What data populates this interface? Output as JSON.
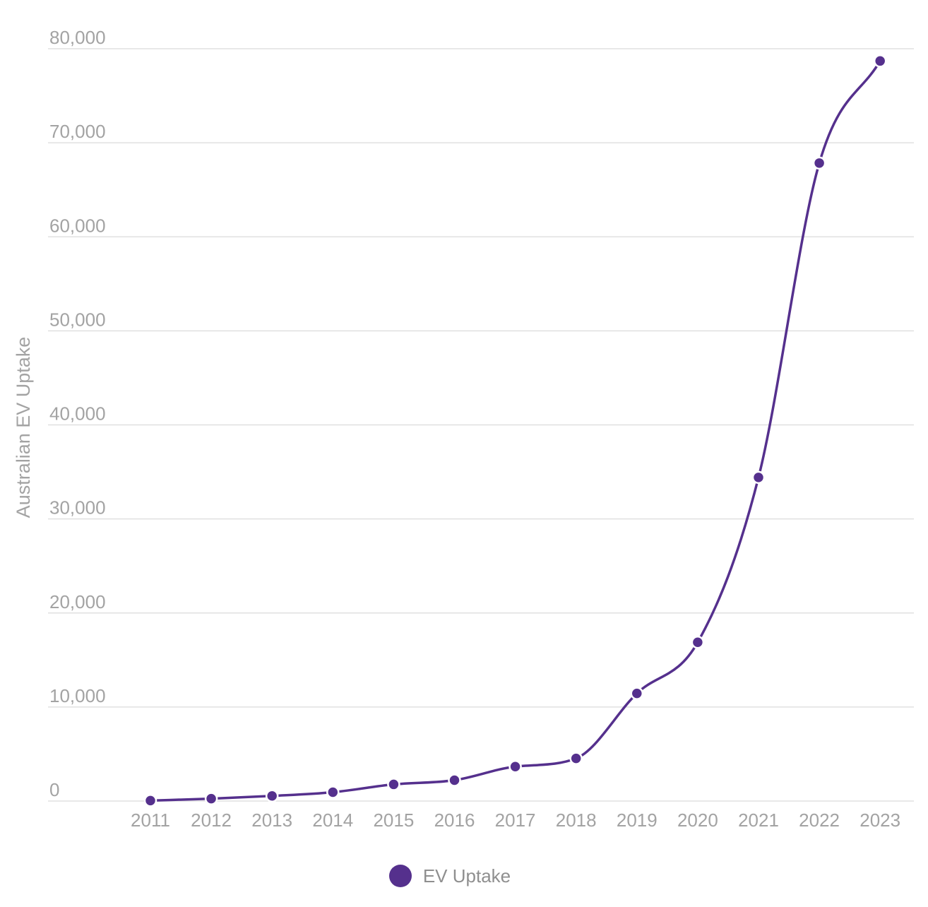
{
  "colors": {
    "series": "#55308d",
    "grid": "#e0e0e0",
    "text": "#a3a3a3"
  },
  "legend": {
    "label": "EV Uptake"
  },
  "chart_data": {
    "type": "line",
    "title": "",
    "xlabel": "",
    "ylabel": "Australian EV Uptake",
    "categories": [
      "2011",
      "2012",
      "2013",
      "2014",
      "2015",
      "2016",
      "2017",
      "2018",
      "2019",
      "2020",
      "2021",
      "2022",
      "2023"
    ],
    "yticks": [
      0,
      10000,
      20000,
      30000,
      40000,
      50000,
      60000,
      70000,
      80000
    ],
    "ytick_labels": [
      "0",
      "10,000",
      "20,000",
      "30,000",
      "40,000",
      "50,000",
      "60,000",
      "70,000",
      "80,000"
    ],
    "ylim": [
      0,
      80000
    ],
    "grid": true,
    "smooth": true,
    "legend_position": "bottom",
    "series": [
      {
        "name": "EV Uptake",
        "values": [
          49,
          253,
          543,
          937,
          1771,
          2216,
          3663,
          4533,
          11448,
          16884,
          34414,
          67844,
          78700
        ]
      }
    ]
  }
}
